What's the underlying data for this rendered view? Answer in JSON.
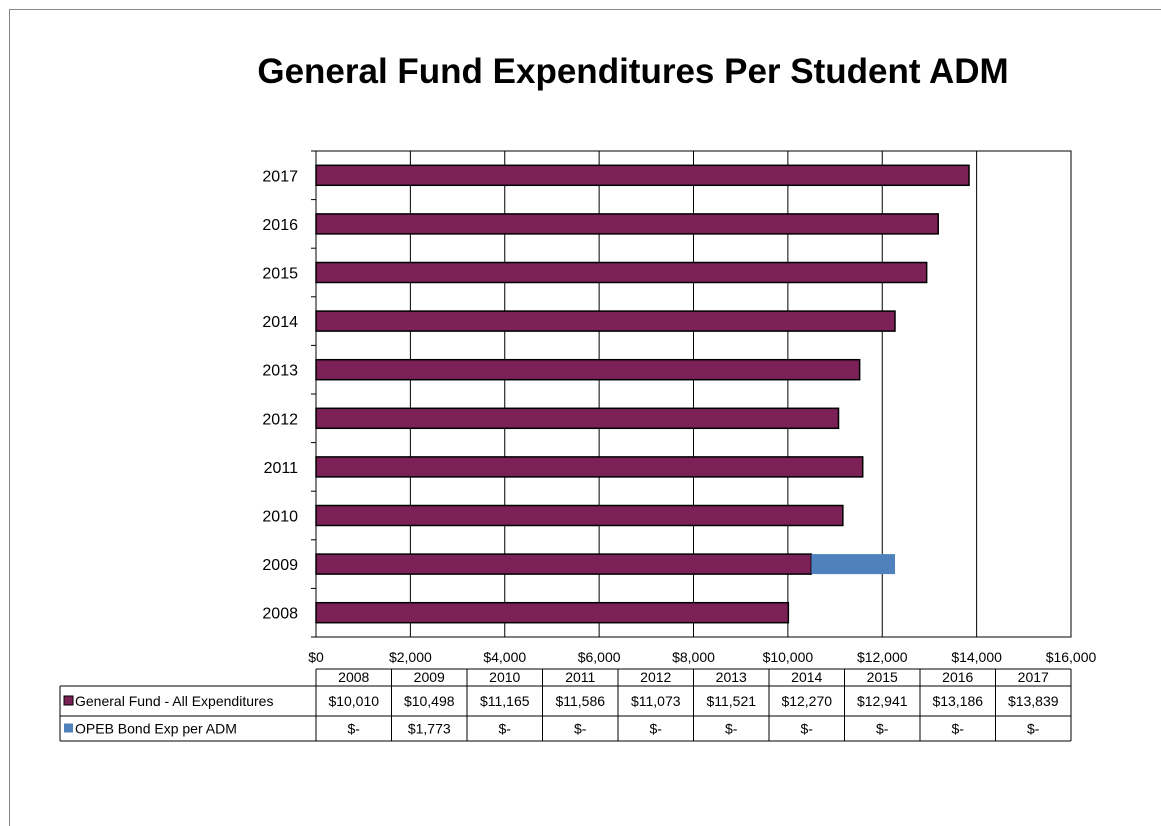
{
  "chart_data": {
    "type": "bar",
    "orientation": "horizontal",
    "stacked": true,
    "title": "General Fund Expenditures Per Student ADM",
    "categories": [
      "2008",
      "2009",
      "2010",
      "2011",
      "2012",
      "2013",
      "2014",
      "2015",
      "2016",
      "2017"
    ],
    "series": [
      {
        "name": "General Fund - All Expenditures",
        "color": "#7B2157",
        "values": [
          10010,
          10498,
          11165,
          11586,
          11073,
          11521,
          12270,
          12941,
          13186,
          13839
        ],
        "labels": [
          "$10,010",
          "$10,498",
          "$11,165",
          "$11,586",
          "$11,073",
          "$11,521",
          "$12,270",
          "$12,941",
          "$13,186",
          "$13,839"
        ]
      },
      {
        "name": "OPEB Bond Exp per ADM",
        "color": "#4F81BD",
        "values": [
          0,
          1773,
          0,
          0,
          0,
          0,
          0,
          0,
          0,
          0
        ],
        "labels": [
          "$-",
          "$1,773",
          "$-",
          "$-",
          "$-",
          "$-",
          "$-",
          "$-",
          "$-",
          "$-"
        ]
      }
    ],
    "xlim": [
      0,
      16000
    ],
    "x_ticks": [
      0,
      2000,
      4000,
      6000,
      8000,
      10000,
      12000,
      14000,
      16000
    ],
    "x_tick_labels": [
      "$0",
      "$2,000",
      "$4,000",
      "$6,000",
      "$8,000",
      "$10,000",
      "$12,000",
      "$14,000",
      "$16,000"
    ],
    "grid": "vertical major gridlines",
    "data_table": true
  }
}
